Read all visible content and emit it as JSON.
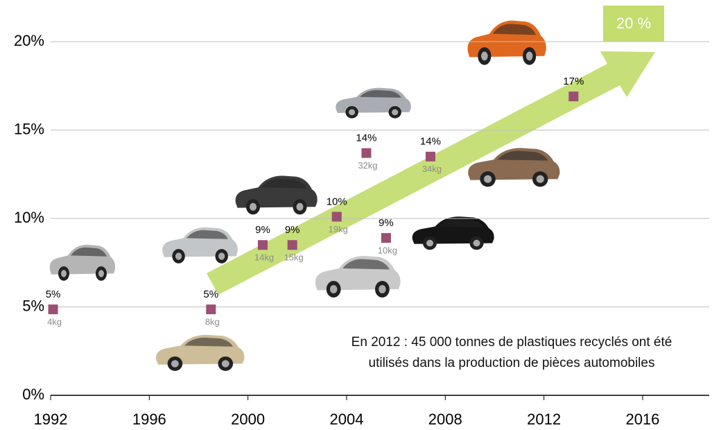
{
  "chart_data": {
    "type": "scatter",
    "x": [
      1992.1,
      1998.5,
      2000.6,
      2001.8,
      2003.6,
      2004.8,
      2005.6,
      2007.4,
      2013.2
    ],
    "values": [
      4.86,
      4.86,
      8.5,
      8.5,
      10.1,
      13.7,
      8.9,
      13.5,
      16.9
    ],
    "value_labels": [
      "5%",
      "5%",
      "9%",
      "9%",
      "10%",
      "14%",
      "9%",
      "14%",
      "17%"
    ],
    "weight_labels": [
      "4kg",
      "8kg",
      "14kg",
      "15kg",
      "19kg",
      "32kg",
      "10kg",
      "34kg",
      null
    ],
    "color": "#9b4f72",
    "xlim": [
      1992,
      2018.7
    ],
    "xticks": [
      1992,
      1996,
      2000,
      2004,
      2008,
      2012,
      2016
    ],
    "ylim": [
      0,
      20
    ],
    "yticks": [
      {
        "value": 0,
        "label": "0%"
      },
      {
        "value": 5,
        "label": "5%"
      },
      {
        "value": 10,
        "label": "10%"
      },
      {
        "value": 15,
        "label": "15%"
      },
      {
        "value": 20,
        "label": "20%"
      }
    ],
    "grid": true,
    "arrow_label": "20 %",
    "annotation": [
      "En 2012 : 45 000 tonnes de plastiques recyclés ont été",
      "utilisés dans la production de pièces automobiles"
    ]
  }
}
